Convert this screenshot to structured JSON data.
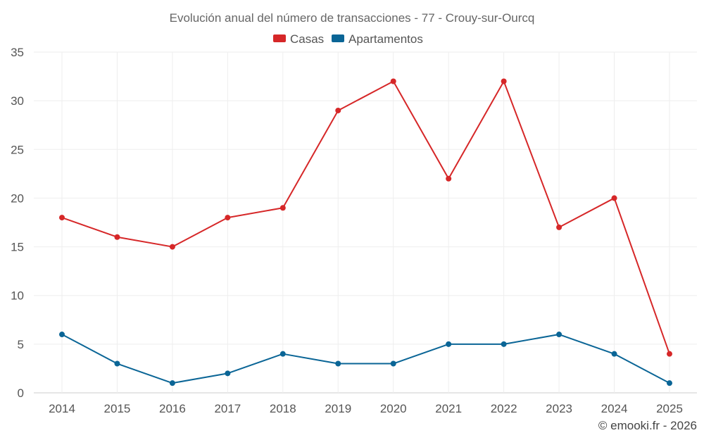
{
  "chart_data": {
    "type": "line",
    "title": "Evolución anual del número de transacciones - 77 - Crouy-sur-Ourcq",
    "xlabel": "",
    "ylabel": "",
    "categories": [
      "2014",
      "2015",
      "2016",
      "2017",
      "2018",
      "2019",
      "2020",
      "2021",
      "2022",
      "2023",
      "2024",
      "2025"
    ],
    "ylim": [
      0,
      35
    ],
    "yticks": [
      0,
      5,
      10,
      15,
      20,
      25,
      30,
      35
    ],
    "grid": true,
    "legend_position": "top-center",
    "series": [
      {
        "name": "Casas",
        "color": "#d62728",
        "values": [
          18,
          16,
          15,
          18,
          19,
          29,
          32,
          22,
          32,
          17,
          20,
          4
        ]
      },
      {
        "name": "Apartamentos",
        "color": "#0a6596",
        "values": [
          6,
          3,
          1,
          2,
          4,
          3,
          3,
          5,
          5,
          6,
          4,
          1
        ]
      }
    ],
    "credit": "© emooki.fr - 2026"
  }
}
